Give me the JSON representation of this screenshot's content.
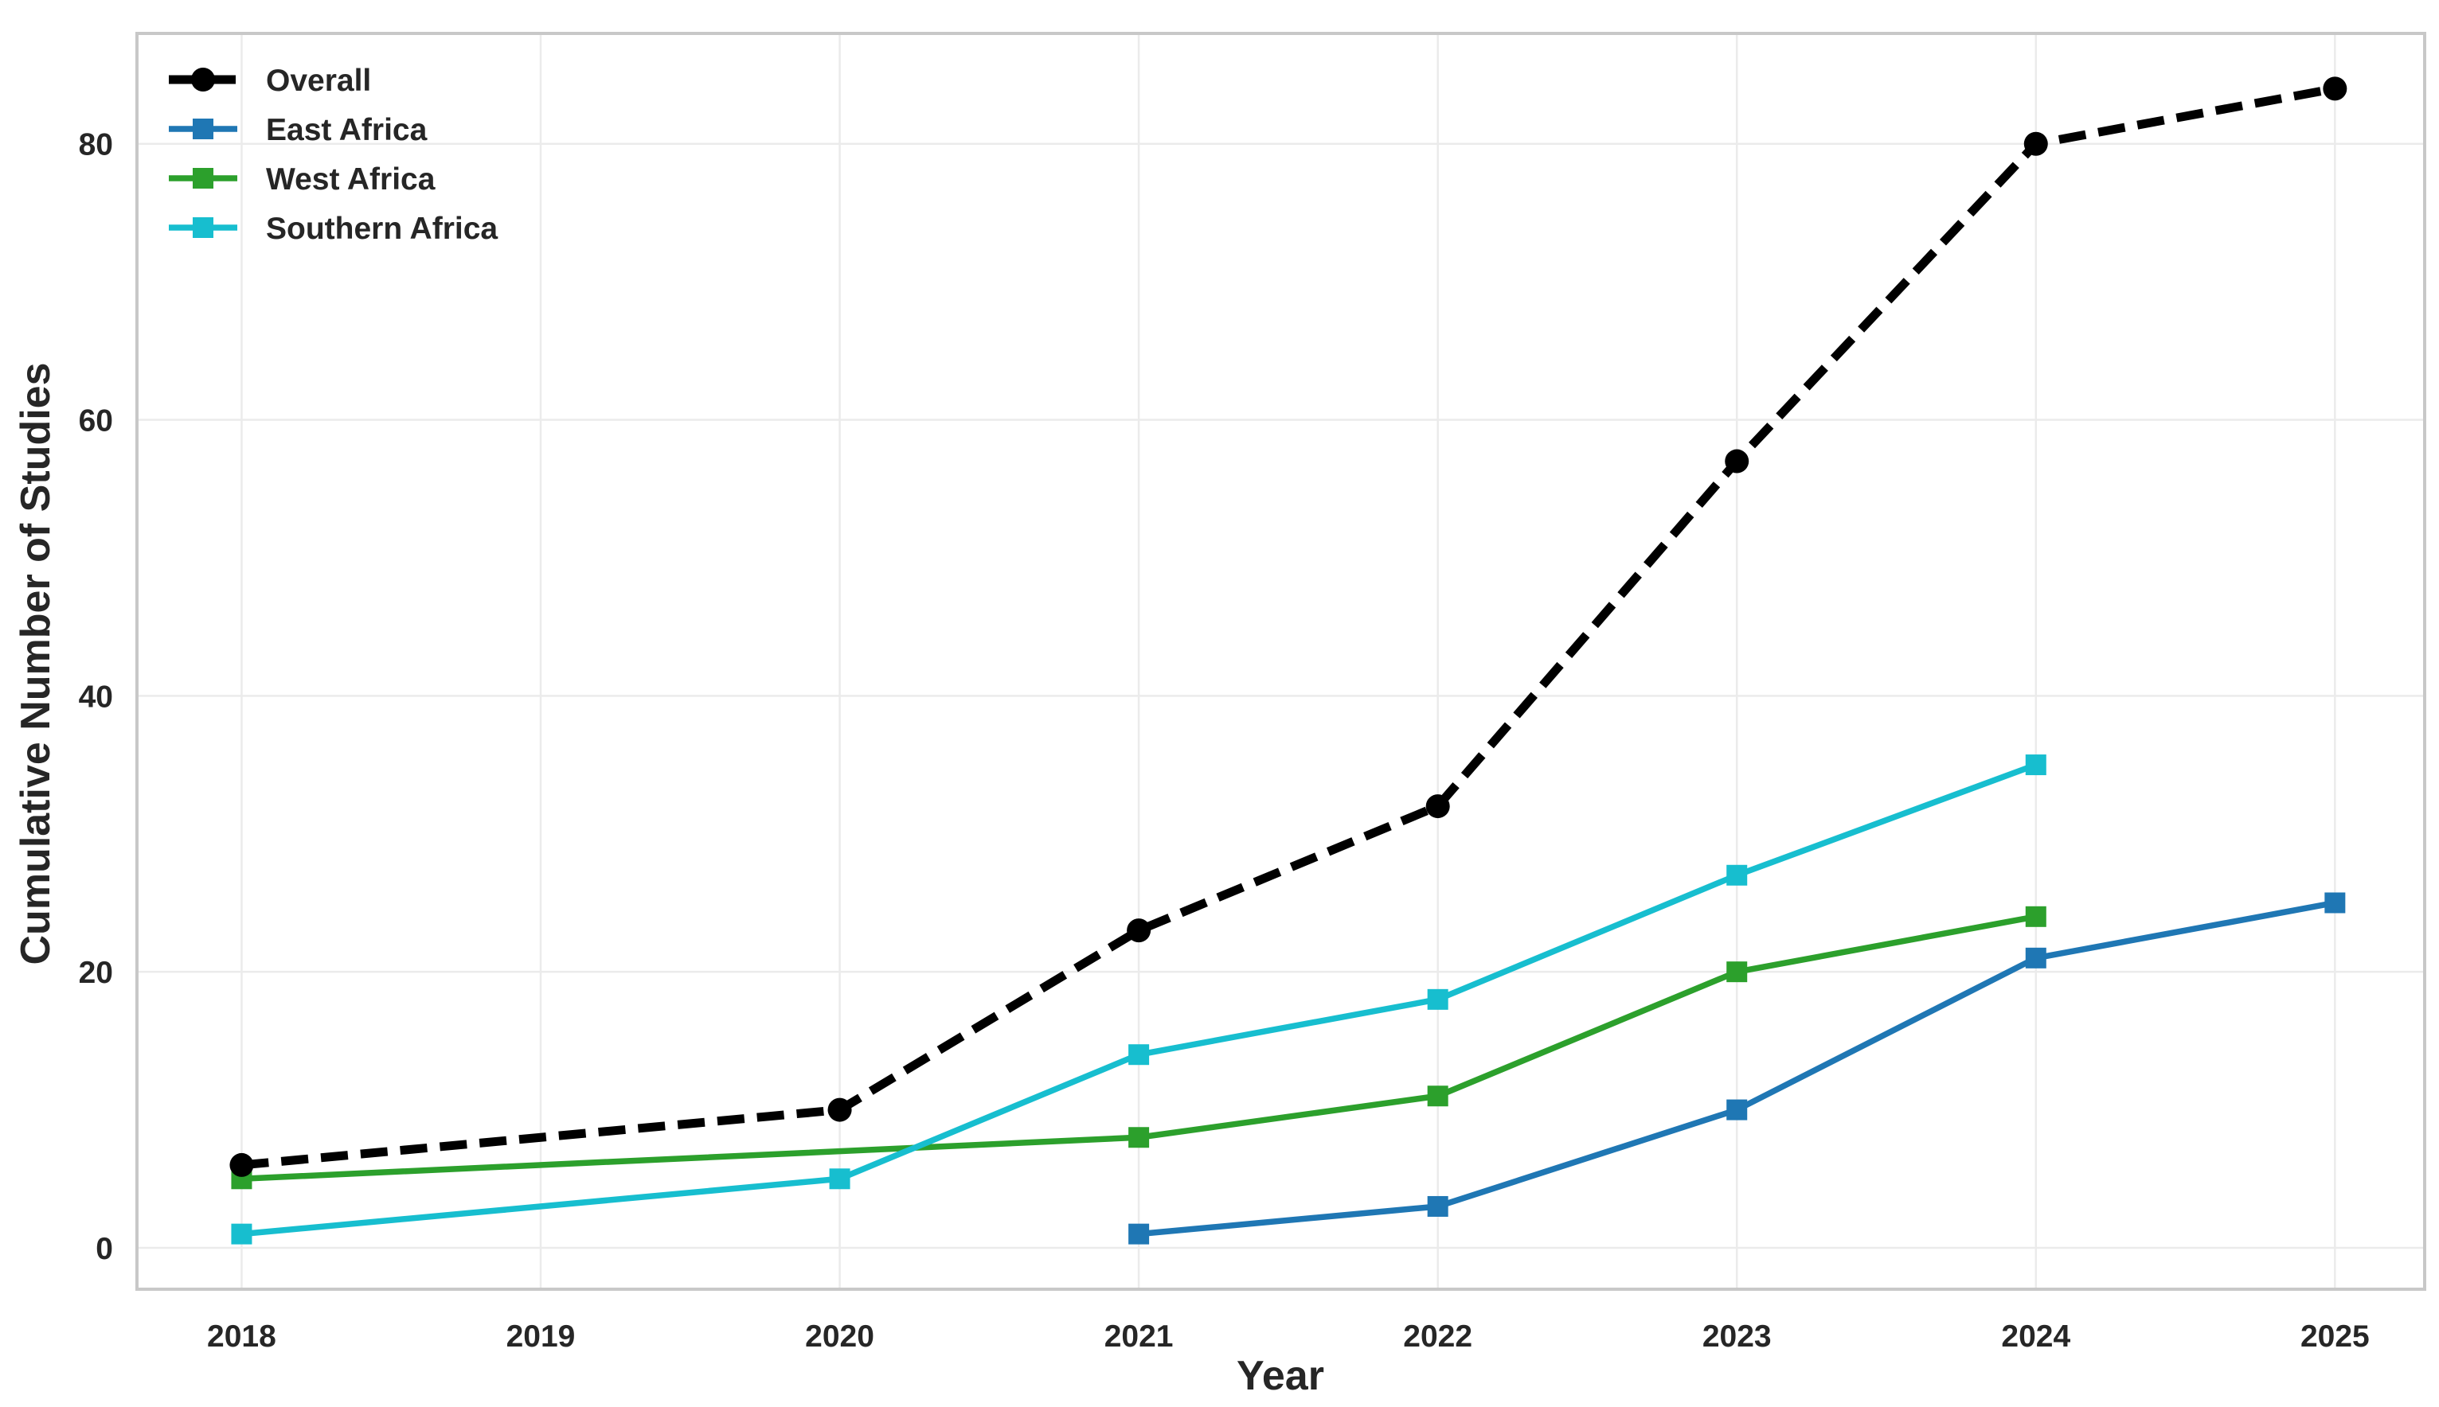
{
  "chart_data": {
    "type": "line",
    "title": "",
    "xlabel": "Year",
    "ylabel": "Cumulative Number of Studies",
    "x_categories": [
      "2018",
      "2019",
      "2020",
      "2021",
      "2022",
      "2023",
      "2024",
      "2025"
    ],
    "yticks": [
      "0",
      "20",
      "40",
      "60",
      "80"
    ],
    "xlim": [
      2017.65,
      2025.3
    ],
    "ylim": [
      -3,
      88
    ],
    "grid": true,
    "legend_position": "top-left",
    "series": [
      {
        "name": "Overall",
        "color": "#000000",
        "marker": "circle",
        "line_style": "dashed",
        "points": [
          [
            2018,
            6
          ],
          [
            2020,
            10
          ],
          [
            2021,
            23
          ],
          [
            2022,
            32
          ],
          [
            2023,
            57
          ],
          [
            2024,
            80
          ],
          [
            2025,
            84
          ]
        ]
      },
      {
        "name": "East Africa",
        "color": "#1f77b4",
        "marker": "square",
        "line_style": "solid",
        "points": [
          [
            2021,
            1
          ],
          [
            2022,
            3
          ],
          [
            2023,
            10
          ],
          [
            2024,
            21
          ],
          [
            2025,
            25
          ]
        ]
      },
      {
        "name": "West Africa",
        "color": "#2ca02c",
        "marker": "square",
        "line_style": "solid",
        "points": [
          [
            2018,
            5
          ],
          [
            2021,
            8
          ],
          [
            2022,
            11
          ],
          [
            2023,
            20
          ],
          [
            2024,
            24
          ]
        ]
      },
      {
        "name": "Southern Africa",
        "color": "#17becf",
        "marker": "square",
        "line_style": "solid",
        "points": [
          [
            2018,
            1
          ],
          [
            2020,
            5
          ],
          [
            2021,
            14
          ],
          [
            2022,
            18
          ],
          [
            2023,
            27
          ],
          [
            2024,
            35
          ]
        ]
      }
    ]
  }
}
